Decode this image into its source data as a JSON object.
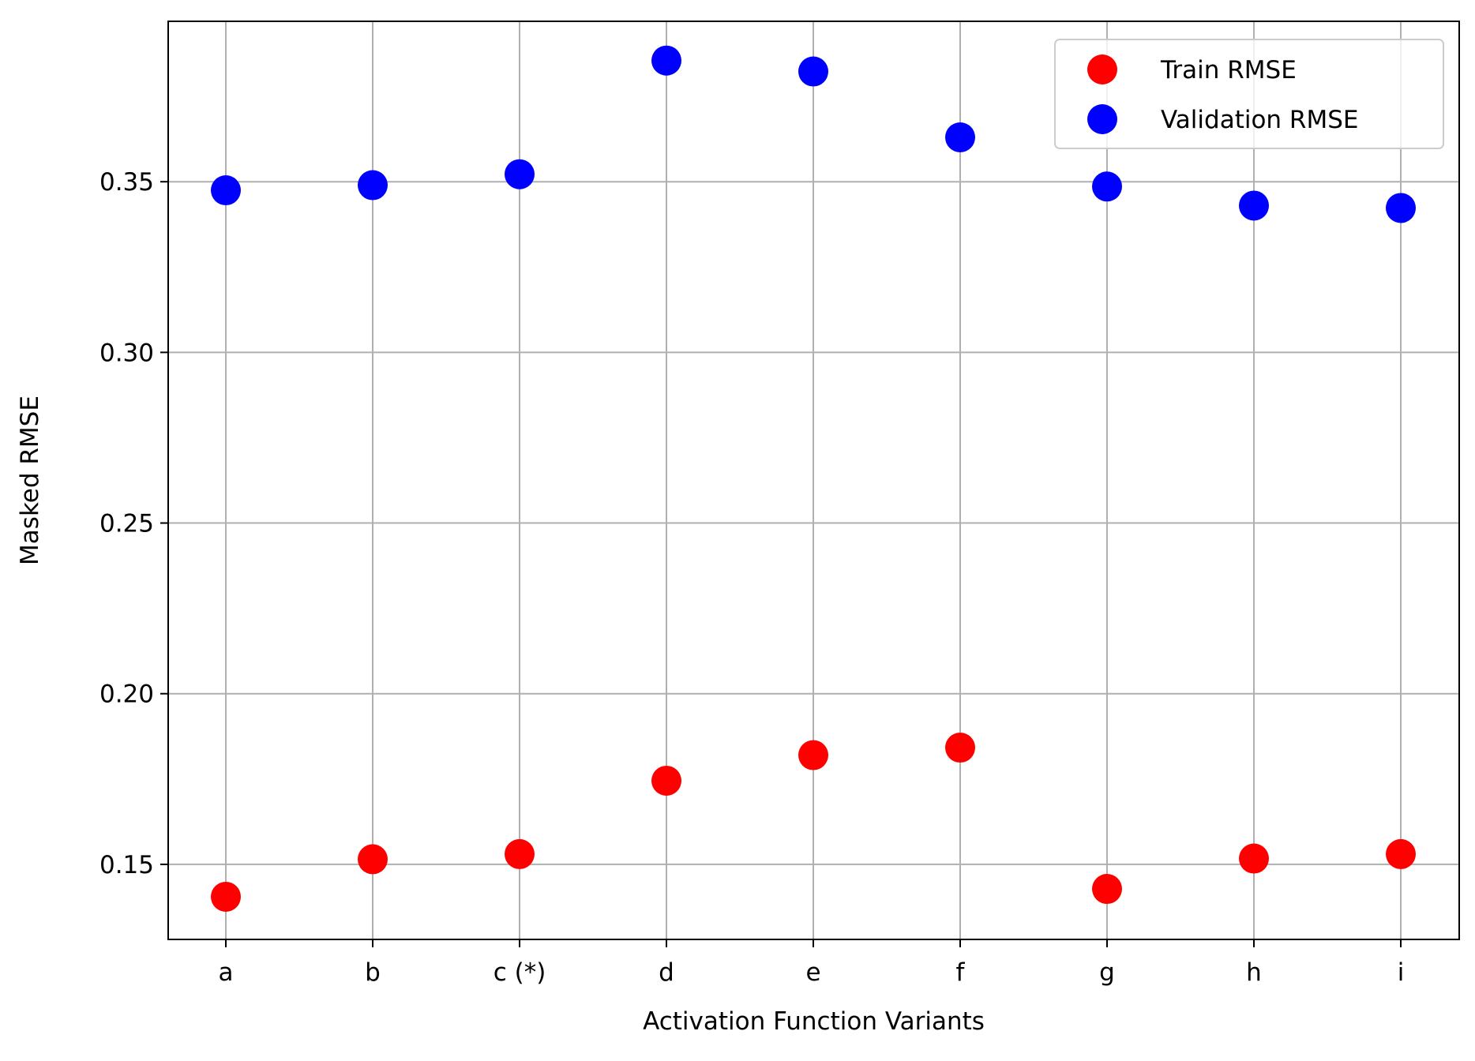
{
  "chart_data": {
    "type": "scatter",
    "title": "",
    "xlabel": "Activation Function Variants",
    "ylabel": "Masked RMSE",
    "categories": [
      "a",
      "b",
      "c (*)",
      "d",
      "e",
      "f",
      "g",
      "h",
      "i"
    ],
    "ylim": [
      0.128,
      0.397
    ],
    "yticks": [
      0.15,
      0.2,
      0.25,
      0.3,
      0.35
    ],
    "ytick_labels": [
      "0.15",
      "0.20",
      "0.25",
      "0.30",
      "0.35"
    ],
    "grid": true,
    "legend_position": "top-right",
    "series": [
      {
        "name": "Train RMSE",
        "color": "#ff0000",
        "values": [
          0.1405,
          0.1515,
          0.153,
          0.1745,
          0.182,
          0.1842,
          0.1428,
          0.1517,
          0.153
        ]
      },
      {
        "name": "Validation RMSE",
        "color": "#0000ff",
        "values": [
          0.3475,
          0.349,
          0.3522,
          0.3855,
          0.3823,
          0.363,
          0.3486,
          0.343,
          0.3423
        ]
      }
    ]
  }
}
